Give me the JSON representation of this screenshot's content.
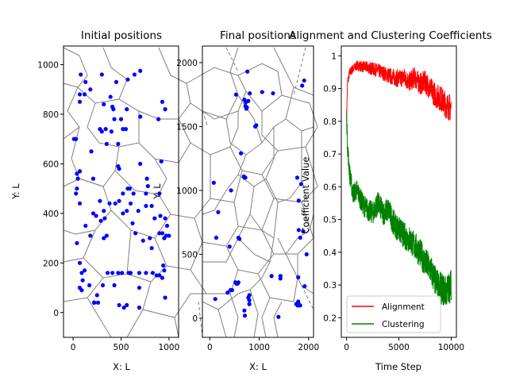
{
  "chart_data": [
    {
      "type": "scatter",
      "title": "Initial positions",
      "xlabel": "X: L",
      "ylabel": "Y: L",
      "xlim": [
        -100,
        1100
      ],
      "ylim": [
        -100,
        1075
      ],
      "xticks": [
        0,
        500,
        1000
      ],
      "yticks": [
        0,
        200,
        400,
        600,
        800,
        1000
      ],
      "grid": false,
      "overlay": "voronoi diagram of points",
      "point_color": "#0000ff",
      "points": [
        [
          80,
          960
        ],
        [
          130,
          930
        ],
        [
          300,
          960
        ],
        [
          570,
          940
        ],
        [
          640,
          960
        ],
        [
          700,
          975
        ],
        [
          180,
          900
        ],
        [
          70,
          880
        ],
        [
          120,
          880
        ],
        [
          70,
          850
        ],
        [
          320,
          840
        ],
        [
          390,
          870
        ],
        [
          410,
          830
        ],
        [
          420,
          820
        ],
        [
          450,
          930
        ],
        [
          930,
          850
        ],
        [
          960,
          820
        ],
        [
          890,
          780
        ],
        [
          700,
          790
        ],
        [
          560,
          820
        ],
        [
          500,
          780
        ],
        [
          430,
          780
        ],
        [
          190,
          650
        ],
        [
          280,
          740
        ],
        [
          300,
          730
        ],
        [
          340,
          740
        ],
        [
          350,
          680
        ],
        [
          400,
          730
        ],
        [
          470,
          680
        ],
        [
          520,
          740
        ],
        [
          550,
          740
        ],
        [
          470,
          590
        ],
        [
          480,
          580
        ],
        [
          700,
          600
        ],
        [
          770,
          540
        ],
        [
          920,
          610
        ],
        [
          10,
          700
        ],
        [
          30,
          700
        ],
        [
          40,
          560
        ],
        [
          50,
          540
        ],
        [
          70,
          570
        ],
        [
          40,
          500
        ],
        [
          30,
          480
        ],
        [
          70,
          440
        ],
        [
          210,
          540
        ],
        [
          280,
          450
        ],
        [
          320,
          410
        ],
        [
          330,
          380
        ],
        [
          290,
          370
        ],
        [
          210,
          400
        ],
        [
          240,
          390
        ],
        [
          130,
          350
        ],
        [
          380,
          440
        ],
        [
          440,
          440
        ],
        [
          480,
          450
        ],
        [
          520,
          480
        ],
        [
          570,
          500
        ],
        [
          590,
          500
        ],
        [
          600,
          440
        ],
        [
          560,
          410
        ],
        [
          520,
          400
        ],
        [
          630,
          480
        ],
        [
          780,
          510
        ],
        [
          760,
          480
        ],
        [
          680,
          410
        ],
        [
          760,
          430
        ],
        [
          820,
          430
        ],
        [
          900,
          480
        ],
        [
          910,
          390
        ],
        [
          850,
          380
        ],
        [
          960,
          380
        ],
        [
          980,
          350
        ],
        [
          900,
          320
        ],
        [
          930,
          320
        ],
        [
          970,
          310
        ],
        [
          1000,
          310
        ],
        [
          950,
          300
        ],
        [
          620,
          360
        ],
        [
          650,
          320
        ],
        [
          730,
          290
        ],
        [
          800,
          300
        ],
        [
          820,
          260
        ],
        [
          40,
          280
        ],
        [
          320,
          300
        ],
        [
          350,
          310
        ],
        [
          180,
          310
        ],
        [
          70,
          200
        ],
        [
          90,
          160
        ],
        [
          120,
          170
        ],
        [
          100,
          130
        ],
        [
          170,
          110
        ],
        [
          70,
          100
        ],
        [
          90,
          90
        ],
        [
          250,
          70
        ],
        [
          220,
          40
        ],
        [
          260,
          40
        ],
        [
          310,
          110
        ],
        [
          360,
          160
        ],
        [
          410,
          160
        ],
        [
          430,
          110
        ],
        [
          470,
          160
        ],
        [
          510,
          160
        ],
        [
          580,
          160
        ],
        [
          600,
          160
        ],
        [
          690,
          160
        ],
        [
          690,
          100
        ],
        [
          760,
          160
        ],
        [
          830,
          160
        ],
        [
          870,
          150
        ],
        [
          940,
          190
        ],
        [
          950,
          170
        ],
        [
          900,
          150
        ],
        [
          930,
          140
        ],
        [
          960,
          60
        ],
        [
          480,
          30
        ],
        [
          530,
          20
        ],
        [
          560,
          30
        ],
        [
          690,
          20
        ],
        [
          220,
          40
        ]
      ]
    },
    {
      "type": "scatter",
      "title": "Final positions",
      "xlabel": "X: L",
      "ylabel": "Y: L",
      "xlim": [
        -150,
        2100
      ],
      "ylim": [
        -150,
        2130
      ],
      "xticks": [
        0,
        1000,
        2000
      ],
      "yticks": [
        0,
        500,
        1000,
        1500,
        2000
      ],
      "grid": false,
      "overlay": "voronoi diagram of points",
      "point_color": "#0000ff",
      "points": [
        [
          760,
          1930
        ],
        [
          530,
          1750
        ],
        [
          700,
          1710
        ],
        [
          730,
          1690
        ],
        [
          720,
          1660
        ],
        [
          740,
          1640
        ],
        [
          750,
          1650
        ],
        [
          780,
          1700
        ],
        [
          810,
          1760
        ],
        [
          1060,
          1770
        ],
        [
          1280,
          1760
        ],
        [
          1870,
          1820
        ],
        [
          1910,
          1860
        ],
        [
          940,
          1510
        ],
        [
          920,
          1500
        ],
        [
          630,
          1290
        ],
        [
          690,
          1110
        ],
        [
          700,
          1100
        ],
        [
          720,
          1100
        ],
        [
          80,
          1060
        ],
        [
          430,
          1000
        ],
        [
          1770,
          1100
        ],
        [
          1850,
          1050
        ],
        [
          1800,
          920
        ],
        [
          170,
          830
        ],
        [
          1800,
          690
        ],
        [
          1890,
          680
        ],
        [
          1830,
          630
        ],
        [
          130,
          630
        ],
        [
          580,
          630
        ],
        [
          600,
          620
        ],
        [
          400,
          560
        ],
        [
          1960,
          500
        ],
        [
          1250,
          330
        ],
        [
          1430,
          330
        ],
        [
          1430,
          310
        ],
        [
          1790,
          320
        ],
        [
          1920,
          250
        ],
        [
          520,
          280
        ],
        [
          540,
          270
        ],
        [
          560,
          270
        ],
        [
          580,
          280
        ],
        [
          420,
          220
        ],
        [
          450,
          220
        ],
        [
          360,
          200
        ],
        [
          110,
          150
        ],
        [
          800,
          180
        ],
        [
          780,
          160
        ],
        [
          800,
          140
        ],
        [
          800,
          110
        ],
        [
          700,
          60
        ],
        [
          710,
          20
        ],
        [
          1750,
          110
        ],
        [
          1780,
          100
        ],
        [
          1800,
          110
        ],
        [
          1830,
          100
        ],
        [
          1790,
          130
        ],
        [
          1390,
          10
        ]
      ]
    },
    {
      "type": "line",
      "title": "Alignment and Clustering Coefficients",
      "xlabel": "Time Step",
      "ylabel": "Coefficient Value",
      "xlim": [
        -500,
        10500
      ],
      "ylim": [
        0.14,
        1.03
      ],
      "xticks": [
        0,
        5000,
        10000
      ],
      "yticks": [
        0.2,
        0.3,
        0.4,
        0.5,
        0.6,
        0.7,
        0.8,
        0.9,
        1.0
      ],
      "grid": false,
      "legend_position": "lower-left",
      "series": [
        {
          "name": "Alignment",
          "color": "#ff0000",
          "x": [
            0,
            100,
            300,
            600,
            1000,
            2000,
            3000,
            4000,
            5000,
            5500,
            6000,
            6500,
            7000,
            7500,
            8000,
            8500,
            9000,
            9500,
            10000
          ],
          "values": [
            0.81,
            0.92,
            0.95,
            0.96,
            0.97,
            0.965,
            0.955,
            0.94,
            0.93,
            0.935,
            0.92,
            0.935,
            0.915,
            0.92,
            0.9,
            0.88,
            0.87,
            0.85,
            0.84
          ]
        },
        {
          "name": "Clustering",
          "color": "#008000",
          "x": [
            0,
            100,
            300,
            600,
            1000,
            1500,
            2000,
            2500,
            3000,
            3500,
            4000,
            4500,
            5000,
            5500,
            6000,
            6500,
            7000,
            7500,
            8000,
            8500,
            9000,
            9500,
            10000
          ],
          "values": [
            0.82,
            0.72,
            0.64,
            0.58,
            0.59,
            0.55,
            0.53,
            0.52,
            0.55,
            0.52,
            0.53,
            0.49,
            0.47,
            0.45,
            0.44,
            0.42,
            0.4,
            0.37,
            0.35,
            0.31,
            0.29,
            0.28,
            0.3
          ]
        }
      ]
    }
  ]
}
